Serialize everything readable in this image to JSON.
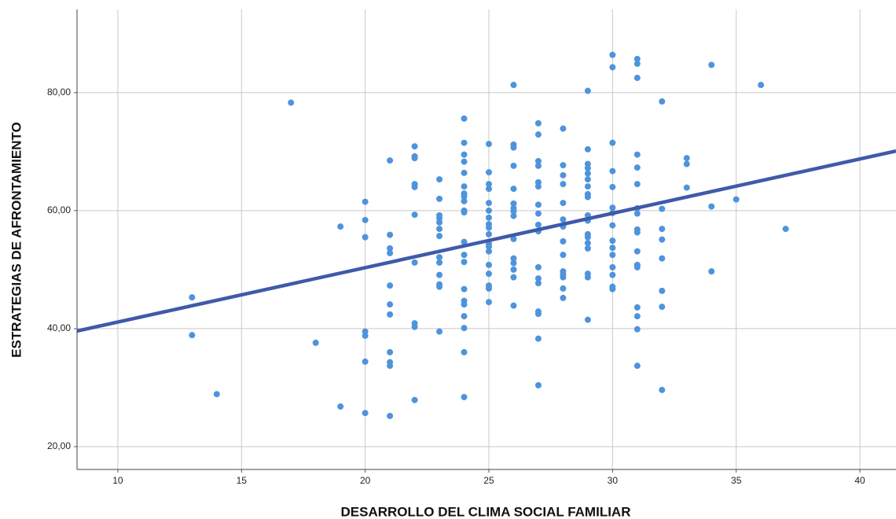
{
  "chart_data": {
    "type": "scatter",
    "x_label": "DESARROLLO DEL CLIMA SOCIAL FAMILIAR",
    "y_label": "ESTRATEGIAS DE AFRONTAMIENTO",
    "xlim": [
      8.35,
      41.46
    ],
    "ylim": [
      16.13,
      94.1
    ],
    "xticks": [
      10,
      15,
      20,
      25,
      30,
      35,
      40
    ],
    "yticks": [
      {
        "value": 20,
        "label": "20,00"
      },
      {
        "value": 40,
        "label": "40,00"
      },
      {
        "value": 60,
        "label": "60,00"
      },
      {
        "value": 80,
        "label": "80,00"
      }
    ],
    "grid": true,
    "color": "#4d94dc",
    "x": [
      13,
      13,
      14,
      17,
      18,
      19,
      19,
      20,
      20,
      20,
      20,
      20,
      20,
      20,
      21,
      21,
      21,
      21,
      21,
      21,
      21,
      21,
      21,
      21,
      21,
      22,
      22,
      22,
      22,
      22,
      22,
      22,
      22,
      22,
      22,
      23,
      23,
      23,
      23,
      23,
      23,
      23,
      23,
      23,
      23,
      23,
      23,
      23,
      24,
      24,
      24,
      24,
      24,
      24,
      24,
      24,
      24,
      24,
      24,
      24,
      24,
      24,
      24,
      24,
      24,
      24,
      24,
      24,
      24,
      25,
      25,
      25,
      25,
      25,
      25,
      25,
      25,
      25,
      25,
      25,
      25,
      25,
      25,
      25,
      25,
      25,
      25,
      26,
      26,
      26,
      26,
      26,
      26,
      26,
      26,
      26,
      26,
      26,
      26,
      26,
      26,
      26,
      27,
      27,
      27,
      27,
      27,
      27,
      27,
      27,
      27,
      27,
      27,
      27,
      27,
      27,
      27,
      27,
      27,
      28,
      28,
      28,
      28,
      28,
      28,
      28,
      28,
      28,
      28,
      28,
      28,
      28,
      28,
      29,
      29,
      29,
      29,
      29,
      29,
      29,
      29,
      29,
      29,
      29,
      29,
      29,
      29,
      29,
      29,
      29,
      29,
      30,
      30,
      30,
      30,
      30,
      30,
      30,
      30,
      30,
      30,
      30,
      30,
      30,
      30,
      30,
      31,
      31,
      31,
      31,
      31,
      31,
      31,
      31,
      31,
      31,
      31,
      31,
      31,
      31,
      31,
      31,
      31,
      32,
      32,
      32,
      32,
      32,
      32,
      32,
      32,
      33,
      33,
      33,
      34,
      34,
      34,
      35,
      36,
      37
    ],
    "values": [
      45.3,
      38.9,
      28.9,
      78.3,
      37.6,
      57.3,
      26.8,
      61.5,
      58.4,
      55.5,
      39.5,
      38.8,
      34.4,
      25.7,
      68.5,
      55.9,
      53.6,
      52.8,
      47.3,
      44.1,
      42.4,
      36,
      34.3,
      33.7,
      25.2,
      70.9,
      69.2,
      68.9,
      64.5,
      64,
      59.3,
      51.2,
      40.9,
      40.3,
      27.9,
      65.3,
      62,
      59.2,
      58.7,
      58,
      56.9,
      55.7,
      52.1,
      51.2,
      49.1,
      47.5,
      47.1,
      39.5,
      75.6,
      71.5,
      69.5,
      68.3,
      66.4,
      64.1,
      62.9,
      62.4,
      61.6,
      60,
      59.7,
      54.7,
      52.5,
      51.3,
      46.7,
      44.7,
      44.1,
      42.1,
      40.1,
      36,
      28.4,
      71.3,
      66.5,
      64.5,
      63.7,
      61.3,
      60,
      58.8,
      57.7,
      57.1,
      56,
      54.4,
      53.9,
      53.1,
      50.8,
      49.3,
      47.3,
      46.8,
      44.5,
      81.3,
      71.2,
      70.7,
      67.6,
      63.7,
      61.2,
      60.4,
      59.9,
      59.1,
      55.2,
      51.9,
      51.1,
      50,
      48.7,
      43.9,
      74.8,
      72.9,
      68.4,
      67.6,
      64.8,
      64.1,
      61,
      59.5,
      57.6,
      56.5,
      50.4,
      48.5,
      47.7,
      42.9,
      42.5,
      38.3,
      30.4,
      73.9,
      67.7,
      66,
      64.5,
      61.3,
      58.5,
      57.3,
      54.8,
      52.5,
      49.7,
      49.2,
      48.7,
      46.8,
      45.2,
      80.3,
      70.4,
      67.9,
      67.2,
      66.3,
      65.3,
      64.1,
      62.8,
      62.3,
      59.2,
      58.3,
      56,
      55.5,
      54.5,
      53.6,
      49.3,
      48.7,
      41.5,
      86.4,
      84.3,
      71.5,
      66.7,
      64,
      60.5,
      59.6,
      57.5,
      54.9,
      53.7,
      52.5,
      50.4,
      49.1,
      47.1,
      46.7,
      85.7,
      84.9,
      82.5,
      69.5,
      67.3,
      64.5,
      60.4,
      59.5,
      56.8,
      56.3,
      53.1,
      50.8,
      50.4,
      43.6,
      42.1,
      39.9,
      33.7,
      78.5,
      60.3,
      56.9,
      55.1,
      51.9,
      46.4,
      43.7,
      29.6,
      68.9,
      67.9,
      63.9,
      84.7,
      60.7,
      49.7,
      61.9,
      81.3,
      56.9
    ],
    "fit": {
      "color": "#3f5aa8",
      "x": [
        8.35,
        41.46
      ],
      "y": [
        39.6,
        70.1
      ]
    }
  }
}
